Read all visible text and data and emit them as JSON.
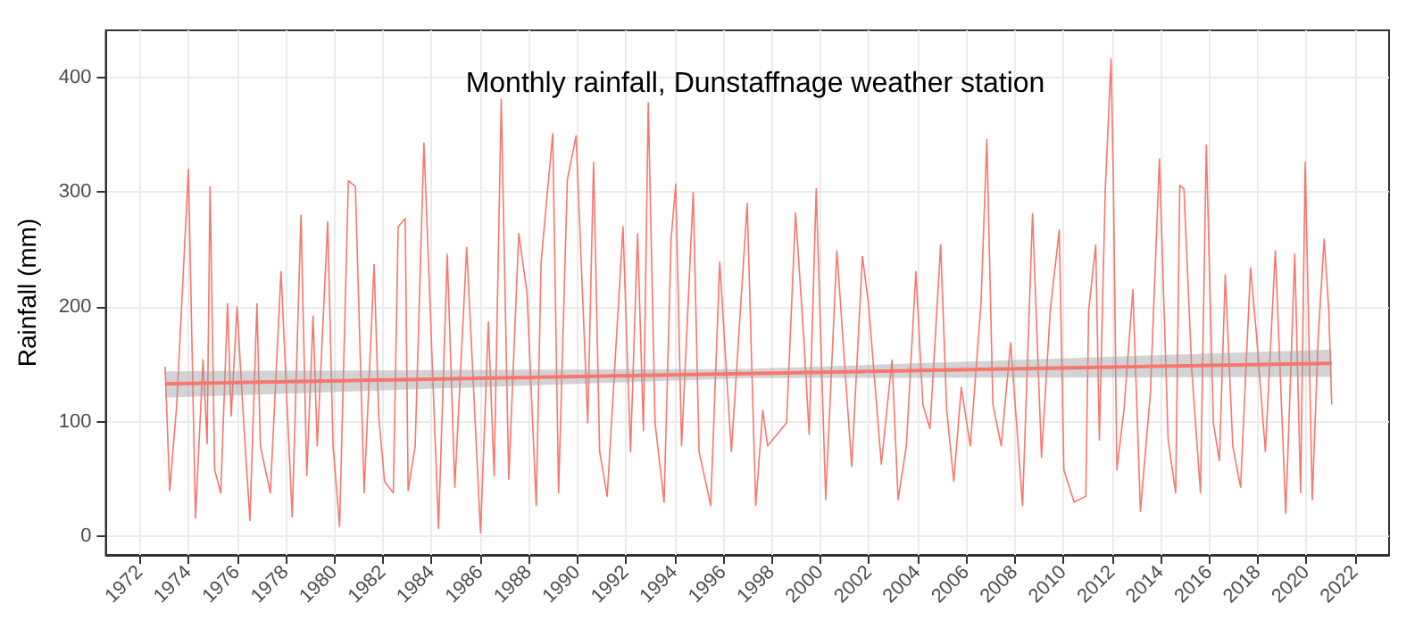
{
  "chart_data": {
    "type": "line",
    "title": "Monthly rainfall, Dunstaffnage weather station",
    "ylabel": "Rainfall (mm)",
    "xlim": [
      1970.6,
      2023.4
    ],
    "ylim": [
      -16,
      441
    ],
    "xticks": [
      1972,
      1974,
      1976,
      1978,
      1980,
      1982,
      1984,
      1986,
      1988,
      1990,
      1992,
      1994,
      1996,
      1998,
      2000,
      2002,
      2004,
      2006,
      2008,
      2010,
      2012,
      2014,
      2016,
      2018,
      2020,
      2022
    ],
    "yticks": [
      0,
      100,
      200,
      300,
      400
    ],
    "grid": true,
    "marker": "none",
    "line_style": "solid",
    "series": [
      {
        "color": "#f8766d",
        "x": [
          1973.04,
          1973.23,
          1973.52,
          1974.0,
          1974.29,
          1974.6,
          1974.77,
          1974.89,
          1975.08,
          1975.33,
          1975.61,
          1975.76,
          1976.0,
          1976.29,
          1976.53,
          1976.82,
          1976.96,
          1977.37,
          1977.81,
          1978.27,
          1978.63,
          1978.87,
          1979.13,
          1979.3,
          1979.73,
          1979.95,
          1980.22,
          1980.58,
          1980.87,
          1981.23,
          1981.64,
          1981.83,
          1982.07,
          1982.43,
          1982.63,
          1982.92,
          1983.04,
          1983.33,
          1983.69,
          1984.29,
          1984.65,
          1984.96,
          1985.45,
          1986.02,
          1986.34,
          1986.58,
          1986.87,
          1987.18,
          1987.59,
          1987.93,
          1988.31,
          1988.51,
          1988.99,
          1989.23,
          1989.59,
          1989.95,
          1990.43,
          1990.67,
          1990.92,
          1991.23,
          1991.88,
          1992.19,
          1992.48,
          1992.72,
          1992.92,
          1993.2,
          1993.57,
          1993.86,
          1994.05,
          1994.29,
          1994.77,
          1995.01,
          1995.49,
          1995.86,
          1996.34,
          1996.99,
          1997.34,
          1997.63,
          1997.83,
          1998.61,
          1998.98,
          1999.34,
          1999.54,
          1999.83,
          2000.22,
          2000.68,
          2001.29,
          2001.73,
          2001.98,
          2002.51,
          2002.95,
          2003.2,
          2003.54,
          2003.93,
          2004.22,
          2004.51,
          2004.95,
          2005.2,
          2005.49,
          2005.8,
          2006.17,
          2006.61,
          2006.85,
          2007.1,
          2007.44,
          2007.83,
          2008.32,
          2008.73,
          2009.1,
          2009.46,
          2009.83,
          2010.02,
          2010.44,
          2010.92,
          2011.04,
          2011.33,
          2011.48,
          2011.72,
          2011.96,
          2012.06,
          2012.2,
          2012.49,
          2012.86,
          2013.17,
          2013.58,
          2013.95,
          2014.31,
          2014.62,
          2014.79,
          2014.96,
          2015.28,
          2015.64,
          2015.88,
          2016.17,
          2016.42,
          2016.66,
          2016.97,
          2017.29,
          2017.7,
          2017.94,
          2018.31,
          2018.72,
          2019.15,
          2019.52,
          2019.76,
          2019.95,
          2020.24,
          2020.48,
          2020.73,
          2020.92,
          2021.04
        ],
        "values": [
          148,
          40,
          115,
          320,
          16,
          154,
          81,
          305,
          58,
          38,
          203,
          105,
          200,
          94,
          14,
          203,
          79,
          38,
          231,
          17,
          280,
          53,
          192,
          79,
          274,
          79,
          9,
          310,
          305,
          38,
          237,
          105,
          48,
          38,
          270,
          277,
          40,
          79,
          343,
          7,
          246,
          43,
          252,
          3,
          187,
          53,
          381,
          50,
          264,
          213,
          27,
          239,
          351,
          38,
          311,
          349,
          99,
          326,
          74,
          35,
          270,
          74,
          264,
          92,
          378,
          99,
          30,
          259,
          307,
          79,
          300,
          74,
          27,
          239,
          74,
          290,
          27,
          110,
          79,
          99,
          282,
          166,
          89,
          303,
          32,
          249,
          61,
          244,
          203,
          63,
          154,
          32,
          79,
          231,
          115,
          94,
          254,
          110,
          48,
          130,
          79,
          203,
          346,
          115,
          79,
          169,
          27,
          281,
          69,
          197,
          267,
          58,
          30,
          35,
          197,
          254,
          84,
          300,
          416,
          306,
          58,
          110,
          215,
          22,
          125,
          329,
          84,
          38,
          306,
          303,
          146,
          38,
          341,
          99,
          66,
          228,
          79,
          43,
          234,
          177,
          74,
          249,
          20,
          246,
          38,
          326,
          32,
          172,
          259,
          197,
          115
        ]
      },
      {
        "color": "#f8766d",
        "x": [
          1973.04,
          1997.0,
          2021.04
        ],
        "values": [
          133,
          142,
          151
        ],
        "lower": [
          121,
          138,
          139
        ],
        "upper": [
          144,
          146,
          163
        ]
      }
    ]
  }
}
